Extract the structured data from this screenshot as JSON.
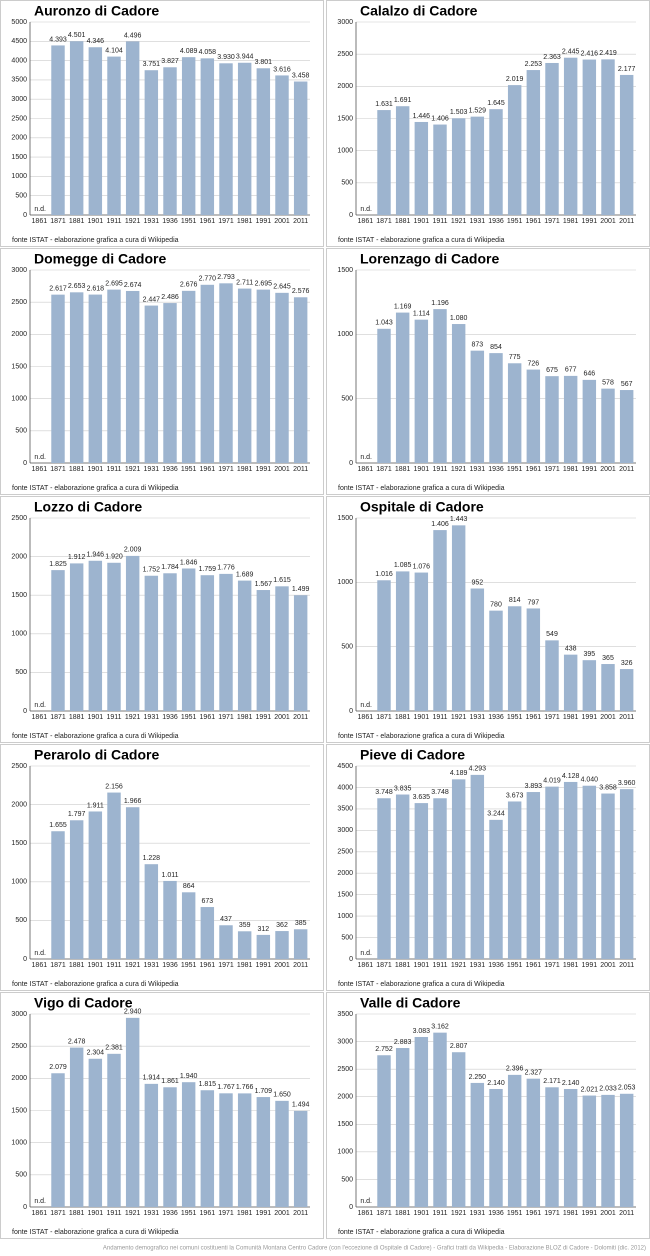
{
  "chart_data": [
    {
      "type": "bar",
      "title": "Auronzo di Cadore",
      "source": "fonte ISTAT - elaborazione grafica a cura di Wikipedia",
      "categories": [
        "1861",
        "1871",
        "1881",
        "1901",
        "1911",
        "1921",
        "1931",
        "1936",
        "1951",
        "1961",
        "1971",
        "1981",
        "1991",
        "2001",
        "2011"
      ],
      "values": [
        null,
        4393,
        4501,
        4346,
        4104,
        4496,
        3751,
        3827,
        4089,
        4058,
        3930,
        3944,
        3801,
        3616,
        3458
      ],
      "value_labels": [
        "n.d.",
        "4.393",
        "4.501",
        "4.346",
        "4.104",
        "4.496",
        "3.751",
        "3.827",
        "4.089",
        "4.058",
        "3.930",
        "3.944",
        "3.801",
        "3.616",
        "3.458"
      ],
      "color": "#9db4cf",
      "ylim": [
        0,
        5000
      ],
      "yticks": [
        0,
        500,
        1000,
        1500,
        2000,
        2500,
        3000,
        3500,
        4000,
        4500,
        5000
      ],
      "grid": true
    },
    {
      "type": "bar",
      "title": "Calalzo di Cadore",
      "source": "fonte ISTAT - elaborazione grafica a cura di Wikipedia",
      "categories": [
        "1861",
        "1871",
        "1881",
        "1901",
        "1911",
        "1921",
        "1931",
        "1936",
        "1951",
        "1961",
        "1971",
        "1981",
        "1991",
        "2001",
        "2011"
      ],
      "values": [
        null,
        1631,
        1691,
        1446,
        1406,
        1503,
        1529,
        1645,
        2019,
        2253,
        2363,
        2445,
        2416,
        2419,
        2177
      ],
      "value_labels": [
        "n.d.",
        "1.631",
        "1.691",
        "1.446",
        "1.406",
        "1.503",
        "1.529",
        "1.645",
        "2.019",
        "2.253",
        "2.363",
        "2.445",
        "2.416",
        "2.419",
        "2.177"
      ],
      "color": "#9db4cf",
      "ylim": [
        0,
        3000
      ],
      "yticks": [
        0,
        500,
        1000,
        1500,
        2000,
        2500,
        3000
      ],
      "grid": true
    },
    {
      "type": "bar",
      "title": "Domegge di Cadore",
      "source": "fonte ISTAT - elaborazione grafica a cura di Wikipedia",
      "categories": [
        "1861",
        "1871",
        "1881",
        "1901",
        "1911",
        "1921",
        "1931",
        "1936",
        "1951",
        "1961",
        "1971",
        "1981",
        "1991",
        "2001",
        "2011"
      ],
      "values": [
        null,
        2617,
        2653,
        2618,
        2695,
        2674,
        2447,
        2486,
        2676,
        2770,
        2793,
        2711,
        2695,
        2645,
        2576
      ],
      "value_labels": [
        "n.d.",
        "2.617",
        "2.653",
        "2.618",
        "2.695",
        "2.674",
        "2.447",
        "2.486",
        "2.676",
        "2.770",
        "2.793",
        "2.711",
        "2.695",
        "2.645",
        "2.576"
      ],
      "color": "#9db4cf",
      "ylim": [
        0,
        3000
      ],
      "yticks": [
        0,
        500,
        1000,
        1500,
        2000,
        2500,
        3000
      ],
      "grid": true
    },
    {
      "type": "bar",
      "title": "Lorenzago di Cadore",
      "source": "fonte ISTAT - elaborazione grafica a cura di Wikipedia",
      "categories": [
        "1861",
        "1871",
        "1881",
        "1901",
        "1911",
        "1921",
        "1931",
        "1936",
        "1951",
        "1961",
        "1971",
        "1981",
        "1991",
        "2001",
        "2011"
      ],
      "values": [
        null,
        1043,
        1169,
        1114,
        1196,
        1080,
        873,
        854,
        775,
        726,
        675,
        677,
        646,
        578,
        567
      ],
      "value_labels": [
        "n.d.",
        "1.043",
        "1.169",
        "1.114",
        "1.196",
        "1.080",
        "873",
        "854",
        "775",
        "726",
        "675",
        "677",
        "646",
        "578",
        "567"
      ],
      "color": "#9db4cf",
      "ylim": [
        0,
        1500
      ],
      "yticks": [
        0,
        500,
        1000,
        1500
      ],
      "grid": true
    },
    {
      "type": "bar",
      "title": "Lozzo di Cadore",
      "source": "fonte ISTAT - elaborazione grafica a cura di Wikipedia",
      "categories": [
        "1861",
        "1871",
        "1881",
        "1901",
        "1911",
        "1921",
        "1931",
        "1936",
        "1951",
        "1961",
        "1971",
        "1981",
        "1991",
        "2001",
        "2011"
      ],
      "values": [
        null,
        1825,
        1912,
        1946,
        1920,
        2009,
        1752,
        1784,
        1846,
        1759,
        1776,
        1689,
        1567,
        1615,
        1499
      ],
      "value_labels": [
        "n.d.",
        "1.825",
        "1.912",
        "1.946",
        "1.920",
        "2.009",
        "1.752",
        "1.784",
        "1.846",
        "1.759",
        "1.776",
        "1.689",
        "1.567",
        "1.615",
        "1.499"
      ],
      "color": "#9db4cf",
      "ylim": [
        0,
        2500
      ],
      "yticks": [
        0,
        500,
        1000,
        1500,
        2000,
        2500
      ],
      "grid": true
    },
    {
      "type": "bar",
      "title": "Ospitale di Cadore",
      "source": "fonte ISTAT - elaborazione grafica a cura di Wikipedia",
      "categories": [
        "1861",
        "1871",
        "1881",
        "1901",
        "1911",
        "1921",
        "1931",
        "1936",
        "1951",
        "1961",
        "1971",
        "1981",
        "1991",
        "2001",
        "2011"
      ],
      "values": [
        null,
        1016,
        1085,
        1076,
        1406,
        1443,
        952,
        780,
        814,
        797,
        549,
        438,
        395,
        365,
        326
      ],
      "value_labels": [
        "n.d.",
        "1.016",
        "1.085",
        "1.076",
        "1.406",
        "1.443",
        "952",
        "780",
        "814",
        "797",
        "549",
        "438",
        "395",
        "365",
        "326"
      ],
      "color": "#9db4cf",
      "ylim": [
        0,
        1500
      ],
      "yticks": [
        0,
        500,
        1000,
        1500
      ],
      "grid": true
    },
    {
      "type": "bar",
      "title": "Perarolo di Cadore",
      "source": "fonte ISTAT - elaborazione grafica a cura di Wikipedia",
      "categories": [
        "1861",
        "1871",
        "1881",
        "1901",
        "1911",
        "1921",
        "1931",
        "1936",
        "1951",
        "1961",
        "1971",
        "1981",
        "1991",
        "2001",
        "2011"
      ],
      "values": [
        null,
        1655,
        1797,
        1911,
        2156,
        1966,
        1228,
        1011,
        864,
        673,
        437,
        359,
        312,
        362,
        385
      ],
      "value_labels": [
        "n.d.",
        "1.655",
        "1.797",
        "1.911",
        "2.156",
        "1.966",
        "1.228",
        "1.011",
        "864",
        "673",
        "437",
        "359",
        "312",
        "362",
        "385"
      ],
      "color": "#9db4cf",
      "ylim": [
        0,
        2500
      ],
      "yticks": [
        0,
        500,
        1000,
        1500,
        2000,
        2500
      ],
      "grid": true
    },
    {
      "type": "bar",
      "title": "Pieve di Cadore",
      "source": "fonte ISTAT - elaborazione grafica a cura di Wikipedia",
      "categories": [
        "1861",
        "1871",
        "1881",
        "1901",
        "1911",
        "1921",
        "1931",
        "1936",
        "1951",
        "1961",
        "1971",
        "1981",
        "1991",
        "2001",
        "2011"
      ],
      "values": [
        null,
        3748,
        3835,
        3635,
        3748,
        4189,
        4293,
        3244,
        3673,
        3893,
        4019,
        4128,
        4040,
        3858,
        3960
      ],
      "value_labels": [
        "n.d.",
        "3.748",
        "3.835",
        "3.635",
        "3.748",
        "4.189",
        "4.293",
        "3.244",
        "3.673",
        "3.893",
        "4.019",
        "4.128",
        "4.040",
        "3.858",
        "3.960"
      ],
      "color": "#9db4cf",
      "ylim": [
        0,
        4500
      ],
      "yticks": [
        0,
        500,
        1000,
        1500,
        2000,
        2500,
        3000,
        3500,
        4000,
        4500
      ],
      "grid": true
    },
    {
      "type": "bar",
      "title": "Vigo di Cadore",
      "source": "fonte ISTAT - elaborazione grafica a cura di Wikipedia",
      "categories": [
        "1861",
        "1871",
        "1881",
        "1901",
        "1911",
        "1921",
        "1931",
        "1936",
        "1951",
        "1961",
        "1971",
        "1981",
        "1991",
        "2001",
        "2011"
      ],
      "values": [
        null,
        2079,
        2478,
        2304,
        2381,
        2940,
        1914,
        1861,
        1940,
        1815,
        1767,
        1766,
        1709,
        1650,
        1494
      ],
      "value_labels": [
        "n.d.",
        "2.079",
        "2.478",
        "2.304",
        "2.381",
        "2.940",
        "1.914",
        "1.861",
        "1.940",
        "1.815",
        "1.767",
        "1.766",
        "1.709",
        "1.650",
        "1.494"
      ],
      "color": "#9db4cf",
      "ylim": [
        0,
        3000
      ],
      "yticks": [
        0,
        500,
        1000,
        1500,
        2000,
        2500,
        3000
      ],
      "grid": true
    },
    {
      "type": "bar",
      "title": "Valle di Cadore",
      "source": "fonte ISTAT - elaborazione grafica a cura di Wikipedia",
      "categories": [
        "1861",
        "1871",
        "1881",
        "1901",
        "1911",
        "1921",
        "1931",
        "1936",
        "1951",
        "1961",
        "1971",
        "1981",
        "1991",
        "2001",
        "2011"
      ],
      "values": [
        null,
        2752,
        2883,
        3083,
        3162,
        2807,
        2250,
        2140,
        2396,
        2327,
        2171,
        2140,
        2021,
        2033,
        2053
      ],
      "value_labels": [
        "n.d.",
        "2.752",
        "2.883",
        "3.083",
        "3.162",
        "2.807",
        "2.250",
        "2.140",
        "2.396",
        "2.327",
        "2.171",
        "2.140",
        "2.021",
        "2.033",
        "2.053"
      ],
      "color": "#9db4cf",
      "ylim": [
        0,
        3500
      ],
      "yticks": [
        0,
        500,
        1000,
        1500,
        2000,
        2500,
        3000,
        3500
      ],
      "grid": true
    }
  ],
  "caption": "Andamento demografico nei comuni costituenti la Comunità Montana Centro Cadore (con l'eccezione di Ospitale di Cadore) - Grafici tratti da Wikipedia - Elaborazione BLOZ di Cadore - Dolomiti (dic. 2012)"
}
